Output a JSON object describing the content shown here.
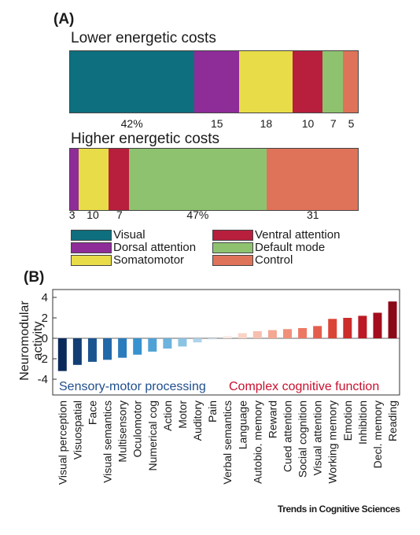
{
  "colors": {
    "Visual": "#0e6f7e",
    "Dorsal attention": "#8e2c98",
    "Somatomotor": "#e8dc48",
    "Ventral attention": "#b71f3c",
    "Default mode": "#8ec26f",
    "Control": "#df735a"
  },
  "panel_a": {
    "label": "(A)",
    "legend": [
      {
        "name": "Visual"
      },
      {
        "name": "Ventral attention"
      },
      {
        "name": "Dorsal attention"
      },
      {
        "name": "Default mode"
      },
      {
        "name": "Somatomotor"
      },
      {
        "name": "Control"
      }
    ]
  },
  "panel_b": {
    "label": "(B)",
    "sensory_label": "Sensory-motor processing",
    "complex_label": "Complex cognitive function",
    "sensory_color": "#1f4e8c",
    "complex_color": "#c8102e"
  },
  "footer": "Trends in Cognitive Sciences",
  "chart_data": [
    {
      "type": "bar",
      "stacked": true,
      "orientation": "horizontal",
      "title": "Lower energetic costs",
      "segments": [
        {
          "network": "Visual",
          "value": 42,
          "label": "42%"
        },
        {
          "network": "Dorsal attention",
          "value": 15,
          "label": "15"
        },
        {
          "network": "Somatomotor",
          "value": 18,
          "label": "18"
        },
        {
          "network": "Ventral attention",
          "value": 10,
          "label": "10"
        },
        {
          "network": "Default mode",
          "value": 7,
          "label": "7"
        },
        {
          "network": "Control",
          "value": 5,
          "label": "5"
        }
      ]
    },
    {
      "type": "bar",
      "stacked": true,
      "orientation": "horizontal",
      "title": "Higher energetic costs",
      "segments": [
        {
          "network": "Dorsal attention",
          "value": 3,
          "label": "3"
        },
        {
          "network": "Somatomotor",
          "value": 10,
          "label": "10"
        },
        {
          "network": "Ventral attention",
          "value": 7,
          "label": "7"
        },
        {
          "network": "Default mode",
          "value": 47,
          "label": "47%"
        },
        {
          "network": "Control",
          "value": 31,
          "label": "31"
        }
      ]
    },
    {
      "type": "bar",
      "ylabel": "Neuromodular activity",
      "ylim": [
        -5,
        4.5
      ],
      "yticks": [
        -4,
        -2,
        0,
        2,
        4
      ],
      "categories": [
        "Visual perception",
        "Visuospatial",
        "Face",
        "Visual semantics",
        "Multisensory",
        "Oculomotor",
        "Numerical cog",
        "Action",
        "Motor",
        "Auditory",
        "Pain",
        "Verbal semantics",
        "Language",
        "Autobio. memory",
        "Reward",
        "Cued attention",
        "Social cognition",
        "Visual attention",
        "Working memory",
        "Emotion",
        "Inhibition",
        "Decl. memory",
        "Reading"
      ],
      "values": [
        -3.2,
        -2.6,
        -2.3,
        -2.1,
        -1.9,
        -1.6,
        -1.3,
        -1.0,
        -0.8,
        -0.4,
        -0.1,
        0.2,
        0.5,
        0.7,
        0.8,
        0.9,
        1.0,
        1.2,
        1.9,
        2.0,
        2.2,
        2.5,
        3.6
      ],
      "bar_colors": [
        "#0a2a5a",
        "#123e74",
        "#1a5590",
        "#2168a8",
        "#2a7cbd",
        "#3892cf",
        "#4fa2d6",
        "#6cb3dd",
        "#8cc3e3",
        "#aed3ea",
        "#cce2ef",
        "#f7e6e1",
        "#f8d3c6",
        "#f6bfae",
        "#f4a792",
        "#f0907a",
        "#ec7863",
        "#e45e4d",
        "#da4436",
        "#cc2c2a",
        "#bb1923",
        "#a30d1d",
        "#8a0a18"
      ]
    }
  ]
}
